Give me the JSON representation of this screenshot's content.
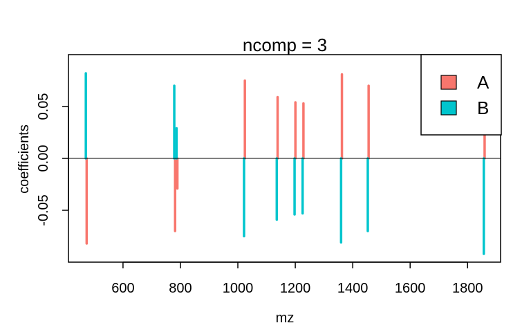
{
  "chart_data": {
    "type": "bar",
    "title": "ncomp = 3",
    "xlabel": "mz",
    "ylabel": "coefficients",
    "xlim": [
      410,
      1915
    ],
    "ylim": [
      -0.1,
      0.1
    ],
    "x_ticks": [
      "600",
      "800",
      "1000",
      "1200",
      "1400",
      "1600",
      "1800"
    ],
    "y_ticks": [
      "-0.05",
      "0.00",
      "0.05"
    ],
    "zero_line": true,
    "grid": false,
    "legend_position": "top-right",
    "series": [
      {
        "name": "A",
        "color": "#F8766D",
        "points": [
          {
            "x": 472,
            "y": -0.082
          },
          {
            "x": 780,
            "y": -0.07
          },
          {
            "x": 788,
            "y": -0.029
          },
          {
            "x": 1023,
            "y": 0.075
          },
          {
            "x": 1137,
            "y": 0.059
          },
          {
            "x": 1199,
            "y": 0.054
          },
          {
            "x": 1227,
            "y": 0.053
          },
          {
            "x": 1361,
            "y": 0.081
          },
          {
            "x": 1454,
            "y": 0.07
          },
          {
            "x": 1858,
            "y": 0.092
          }
        ]
      },
      {
        "name": "B",
        "color": "#00C5CD",
        "points": [
          {
            "x": 472,
            "y": 0.082
          },
          {
            "x": 780,
            "y": 0.07
          },
          {
            "x": 788,
            "y": 0.029
          },
          {
            "x": 1023,
            "y": -0.075
          },
          {
            "x": 1137,
            "y": -0.059
          },
          {
            "x": 1199,
            "y": -0.054
          },
          {
            "x": 1227,
            "y": -0.053
          },
          {
            "x": 1361,
            "y": -0.081
          },
          {
            "x": 1454,
            "y": -0.07
          },
          {
            "x": 1858,
            "y": -0.092
          }
        ]
      }
    ]
  }
}
